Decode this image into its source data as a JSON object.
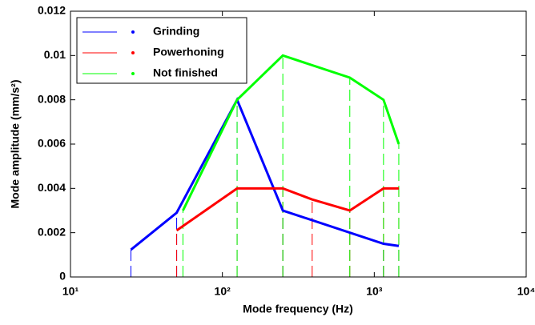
{
  "chart_data": {
    "type": "line",
    "x_label": "Mode frequency (Hz)",
    "y_label": "Mode amplitude (mm/s²)",
    "xscale": "log",
    "xlim": [
      10,
      10000
    ],
    "xticks": [
      {
        "value": 10,
        "label": "10¹"
      },
      {
        "value": 100,
        "label": "10²"
      },
      {
        "value": 1000,
        "label": "10³"
      },
      {
        "value": 10000,
        "label": "10⁴"
      }
    ],
    "ylim": [
      0,
      0.012
    ],
    "yticks": [
      0,
      0.002,
      0.004,
      0.006,
      0.008,
      0.01,
      0.012
    ],
    "legend": "upper left",
    "series": [
      {
        "name": "Grinding",
        "color": "#0000ff",
        "x": [
          25,
          50,
          125,
          250,
          1150,
          1450
        ],
        "values": [
          0.00123,
          0.0029,
          0.008,
          0.003,
          0.0015,
          0.0014
        ]
      },
      {
        "name": "Powerhoning",
        "color": "#ff0000",
        "x": [
          50,
          125,
          250,
          390,
          690,
          1150,
          1450
        ],
        "values": [
          0.0021,
          0.004,
          0.004,
          0.0035,
          0.003,
          0.004,
          0.004
        ]
      },
      {
        "name": "Not finished",
        "color": "#00ff00",
        "x": [
          55,
          125,
          250,
          690,
          1150,
          1450
        ],
        "values": [
          0.003,
          0.008,
          0.01,
          0.009,
          0.008,
          0.006
        ]
      }
    ]
  }
}
